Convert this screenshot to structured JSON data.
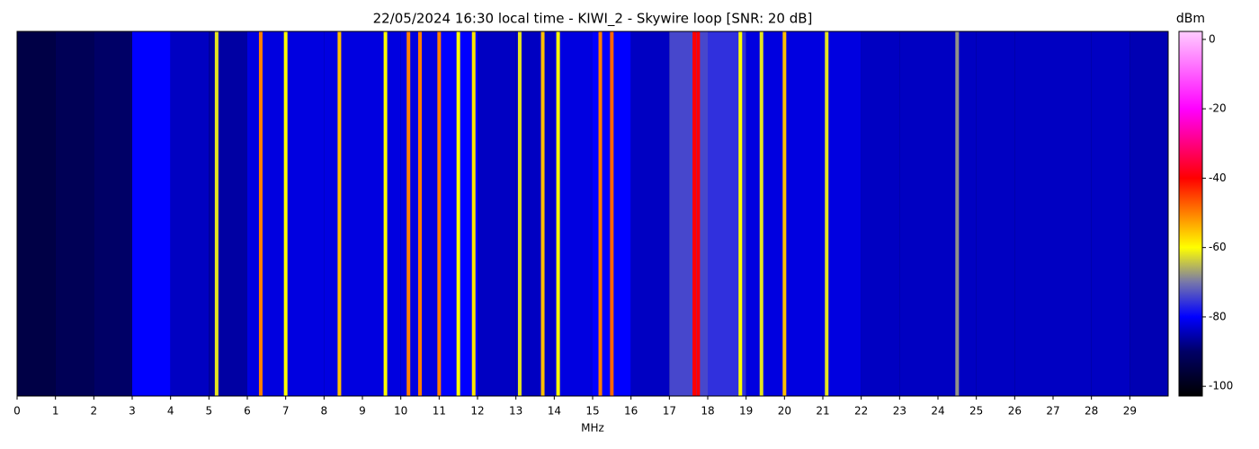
{
  "chart_data": {
    "type": "waterfall",
    "title": "22/05/2024 16:30 local time - KIWI_2 - Skywire loop [SNR: 20 dB]",
    "x_label": "MHz",
    "colorbar_label": "dBm",
    "xlim": [
      0,
      30
    ],
    "xticks": [
      0,
      1,
      2,
      3,
      4,
      5,
      6,
      7,
      8,
      9,
      10,
      11,
      12,
      13,
      14,
      15,
      16,
      17,
      18,
      19,
      20,
      21,
      22,
      23,
      24,
      25,
      26,
      27,
      28,
      29
    ],
    "clim": [
      -102.8,
      2.3
    ],
    "cticks": [
      -100,
      -80,
      -60,
      -40,
      -20,
      0
    ],
    "colormap": [
      {
        "value": -102.8,
        "color": "#000000"
      },
      {
        "value": -90,
        "color": "#000066"
      },
      {
        "value": -80,
        "color": "#0000ff"
      },
      {
        "value": -70,
        "color": "#7777aa"
      },
      {
        "value": -60,
        "color": "#ffff00"
      },
      {
        "value": -40,
        "color": "#ff0000"
      },
      {
        "value": -20,
        "color": "#ff00ff"
      },
      {
        "value": 2.3,
        "color": "#ffccff"
      }
    ],
    "background": {
      "x": [
        0,
        1,
        2,
        3,
        4,
        5,
        6,
        7,
        8,
        9,
        10,
        11,
        12,
        13,
        14,
        15,
        16,
        17,
        18,
        19,
        20,
        21,
        22,
        23,
        24,
        25,
        26,
        27,
        28,
        29
      ],
      "values": [
        -94,
        -92,
        -90,
        -80,
        -84,
        -86,
        -82,
        -82,
        -82,
        -82,
        -82,
        -80,
        -84,
        -84,
        -82,
        -80,
        -84,
        -74,
        -76,
        -82,
        -82,
        -82,
        -84,
        -84,
        -84,
        -84,
        -84,
        -84,
        -84,
        -85
      ]
    },
    "signals": {
      "x": [
        5.2,
        6.35,
        7.0,
        8.4,
        9.6,
        10.2,
        10.5,
        11.0,
        11.5,
        11.9,
        13.1,
        13.7,
        14.1,
        15.2,
        15.5,
        17.65,
        17.75,
        18.85,
        19.4,
        20.0,
        21.1,
        24.5
      ],
      "values": [
        -62,
        -50,
        -60,
        -55,
        -60,
        -50,
        -50,
        -50,
        -60,
        -58,
        -62,
        -55,
        -60,
        -50,
        -48,
        -40,
        -40,
        -60,
        -62,
        -55,
        -62,
        -68
      ]
    }
  }
}
